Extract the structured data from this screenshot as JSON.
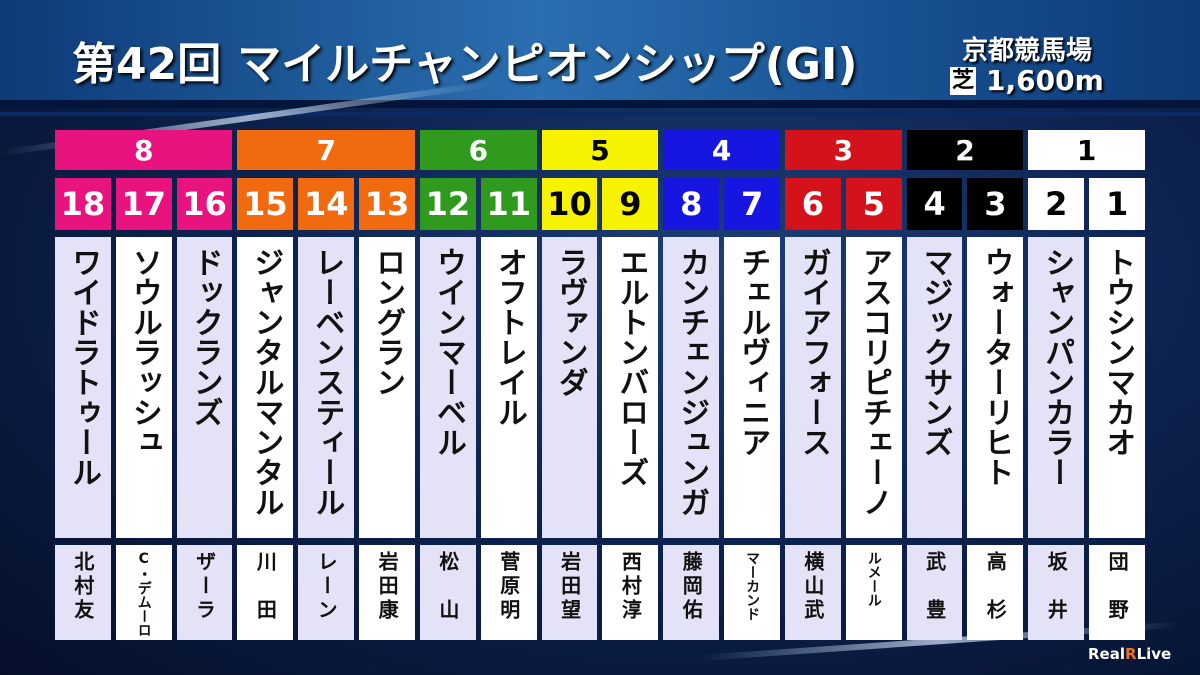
{
  "header": {
    "title_number": "第42回",
    "title_race": "マイルチャンピオンシップ(GI)",
    "venue": "京都競馬場",
    "surface": "芝",
    "distance": "1,600m"
  },
  "frames": [
    {
      "frame": "8",
      "color": "#e8137f",
      "text_color": "#ffffff",
      "horses": [
        {
          "number": "18",
          "name": "ワイドラトゥール",
          "jockey": "北村友"
        },
        {
          "number": "17",
          "name": "ソウルラッシュ",
          "jockey": "C・デムーロ"
        },
        {
          "number": "16",
          "name": "ドックランズ",
          "jockey": "ザーラ"
        }
      ]
    },
    {
      "frame": "7",
      "color": "#f26a10",
      "text_color": "#ffffff",
      "horses": [
        {
          "number": "15",
          "name": "ジャンタルマンタル",
          "jockey": "川　田"
        },
        {
          "number": "14",
          "name": "レーベンスティール",
          "jockey": "レーン"
        },
        {
          "number": "13",
          "name": "ロングラン",
          "jockey": "岩田康"
        }
      ]
    },
    {
      "frame": "6",
      "color": "#2f9a1e",
      "text_color": "#ffffff",
      "horses": [
        {
          "number": "12",
          "name": "ウインマーベル",
          "jockey": "松　山"
        },
        {
          "number": "11",
          "name": "オフトレイル",
          "jockey": "菅原明"
        }
      ]
    },
    {
      "frame": "5",
      "color": "#f7f200",
      "text_color": "#000000",
      "horses": [
        {
          "number": "10",
          "name": "ラヴァンダ",
          "jockey": "岩田望"
        },
        {
          "number": "9",
          "name": "エルトンバローズ",
          "jockey": "西村淳"
        }
      ]
    },
    {
      "frame": "4",
      "color": "#1616e0",
      "text_color": "#ffffff",
      "horses": [
        {
          "number": "8",
          "name": "カンチェンジュンガ",
          "jockey": "藤岡佑"
        },
        {
          "number": "7",
          "name": "チェルヴィニア",
          "jockey": "マーカンド"
        }
      ]
    },
    {
      "frame": "3",
      "color": "#d3121c",
      "text_color": "#ffffff",
      "horses": [
        {
          "number": "6",
          "name": "ガイアフォース",
          "jockey": "横山武"
        },
        {
          "number": "5",
          "name": "アスコリピチェーノ",
          "jockey": "ルメール"
        }
      ]
    },
    {
      "frame": "2",
      "color": "#000000",
      "text_color": "#ffffff",
      "horses": [
        {
          "number": "4",
          "name": "マジックサンズ",
          "jockey": "武　豊"
        },
        {
          "number": "3",
          "name": "ウォーターリヒト",
          "jockey": "高　杉"
        }
      ]
    },
    {
      "frame": "1",
      "color": "#ffffff",
      "text_color": "#000000",
      "horses": [
        {
          "number": "2",
          "name": "シャンパンカラー",
          "jockey": "坂　井"
        },
        {
          "number": "1",
          "name": "トウシンマカオ",
          "jockey": "団　野"
        }
      ]
    }
  ],
  "logo": {
    "part1": "Real",
    "part2": "R",
    "part3": "Live"
  }
}
